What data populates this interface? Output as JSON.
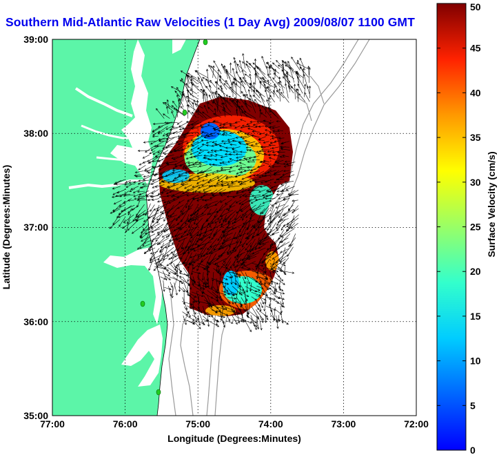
{
  "title": "Southern Mid-Atlantic Raw Velocities (1 Day Avg) 2009/08/07 1100 GMT",
  "chart_data": {
    "type": "map",
    "xlabel": "Longitude (Degrees:Minutes)",
    "ylabel": "Latitude (Degrees:Minutes)",
    "x_ticks": [
      "77:00",
      "76:00",
      "75:00",
      "74:00",
      "73:00",
      "72:00"
    ],
    "y_ticks": [
      "39:00",
      "38:00",
      "37:00",
      "36:00",
      "35:00"
    ],
    "x_range_deg_west": [
      77,
      72
    ],
    "y_range_deg_north": [
      35,
      39
    ],
    "grid": true,
    "colorbar": {
      "label": "Surface Velocity (cm/s)",
      "ticks": [
        "0",
        "5",
        "10",
        "15",
        "20",
        "25",
        "30",
        "35",
        "40",
        "45",
        "50"
      ],
      "range": [
        0,
        50
      ],
      "colormap": "jet"
    },
    "colors": {
      "land": "#5cf5a8",
      "water": "#ffffff",
      "bathymetry": "#999999",
      "station": "#22cc22",
      "vector": "#000000"
    }
  }
}
